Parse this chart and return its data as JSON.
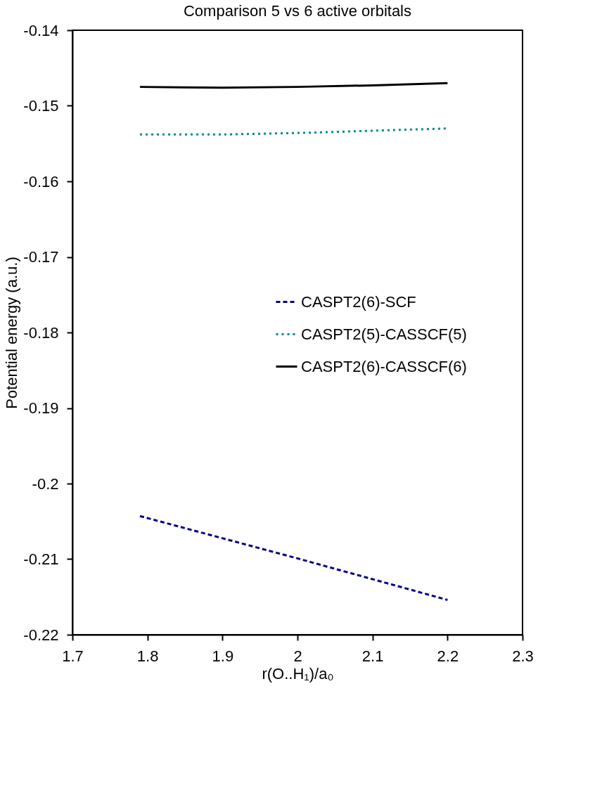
{
  "chart_data": {
    "type": "line",
    "title": "Comparison 5 vs 6 active orbitals",
    "xlabel": "r(O..H₁)/a₀",
    "ylabel": "Potential energy (a.u.)",
    "xlim": [
      1.7,
      2.3
    ],
    "xticks": [
      1.7,
      1.8,
      1.9,
      2,
      2.1,
      2.2,
      2.3
    ],
    "ylim": [
      -0.22,
      -0.14
    ],
    "yticks": [
      -0.22,
      -0.21,
      -0.2,
      -0.19,
      -0.18,
      -0.17,
      -0.16,
      -0.15,
      -0.14
    ],
    "grid": false,
    "legend": "right",
    "marker": "none",
    "series": [
      {
        "name": "CASPT2(6)-SCF",
        "color": "#00008b",
        "line_style": "dashed",
        "x": [
          1.79,
          2.0,
          2.2
        ],
        "values": [
          -0.2043,
          -0.2099,
          -0.2154
        ]
      },
      {
        "name": "CASPT2(5)-CASSCF(5)",
        "color": "#008b8b",
        "line_style": "dotted",
        "x": [
          1.79,
          1.9,
          2.0,
          2.1,
          2.2
        ],
        "values": [
          -0.1538,
          -0.1538,
          -0.1536,
          -0.1533,
          -0.153
        ]
      },
      {
        "name": "CASPT2(6)-CASSCF(6)",
        "color": "#000000",
        "line_style": "solid",
        "x": [
          1.79,
          1.9,
          2.0,
          2.1,
          2.2
        ],
        "values": [
          -0.1475,
          -0.1476,
          -0.1475,
          -0.1473,
          -0.147
        ]
      }
    ]
  }
}
